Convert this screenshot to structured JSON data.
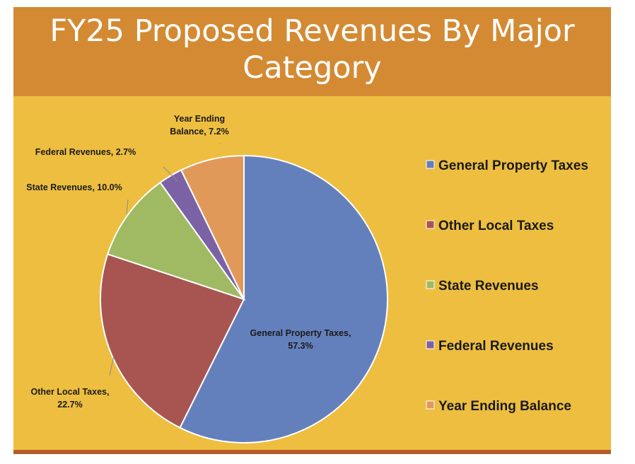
{
  "slide": {
    "title_line1": "FY25 Proposed Revenues By Major",
    "title_line2": "Category"
  },
  "chart_data": {
    "type": "pie",
    "title": "FY25 Proposed Revenues By Major Category",
    "slices": [
      {
        "name": "General Property Taxes",
        "value": 57.3,
        "label_line1": "General Property Taxes,",
        "label_line2": "57.3%",
        "color": "#6480BC"
      },
      {
        "name": "Other Local Taxes",
        "value": 22.7,
        "label_line1": "Other Local Taxes,",
        "label_line2": "22.7%",
        "color": "#A85551"
      },
      {
        "name": "State Revenues",
        "value": 10.0,
        "label_line1": "State Revenues, 10.0%",
        "label_line2": "",
        "color": "#9FBA62"
      },
      {
        "name": "Federal Revenues",
        "value": 2.7,
        "label_line1": "Federal Revenues, 2.7%",
        "label_line2": "",
        "color": "#7B62A4"
      },
      {
        "name": "Year Ending Balance",
        "value": 7.2,
        "label_line1": "Year Ending",
        "label_line2": "Balance, 7.2%",
        "color": "#E1995A"
      }
    ],
    "legend_position": "right"
  }
}
